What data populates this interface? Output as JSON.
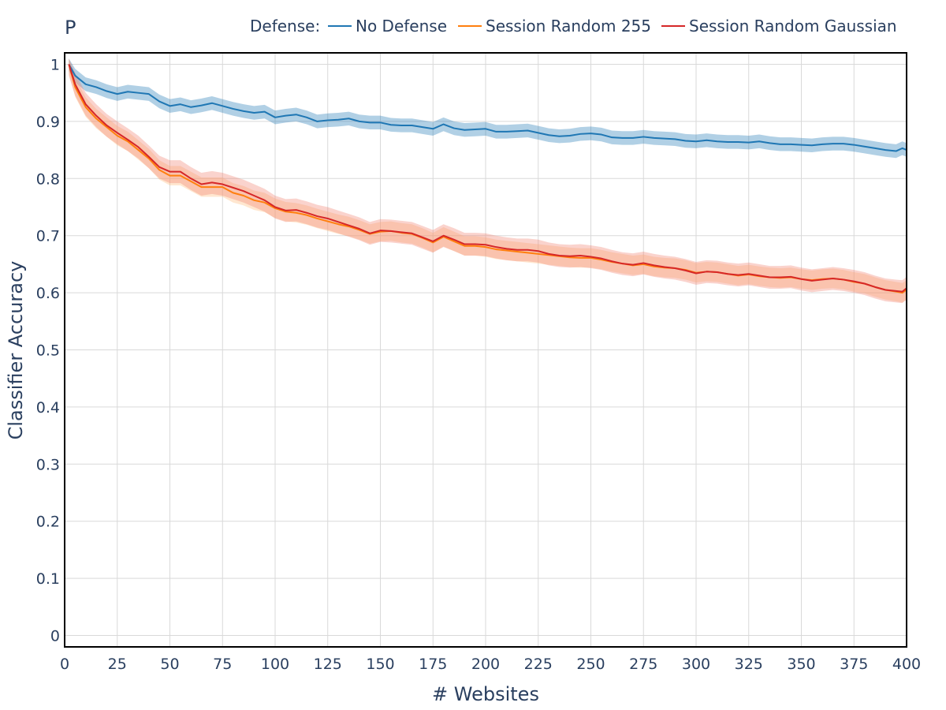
{
  "chart_data": {
    "type": "line",
    "title": "P",
    "xlabel": "# Websites",
    "ylabel": "Classifier Accuracy",
    "xlim": [
      0,
      400
    ],
    "ylim": [
      -0.02,
      1.02
    ],
    "x_ticks": [
      0,
      25,
      50,
      75,
      100,
      125,
      150,
      175,
      200,
      225,
      250,
      275,
      300,
      325,
      350,
      375,
      400
    ],
    "x_tick_labels": [
      "0",
      "25",
      "50",
      "75",
      "100",
      "125",
      "150",
      "175",
      "200",
      "225",
      "250",
      "275",
      "300",
      "325",
      "350",
      "375",
      "400"
    ],
    "y_ticks": [
      0,
      0.1,
      0.2,
      0.3,
      0.4,
      0.5,
      0.6,
      0.7,
      0.8,
      0.9,
      1
    ],
    "y_tick_labels": [
      "0",
      "0.1",
      "0.2",
      "0.3",
      "0.4",
      "0.5",
      "0.6",
      "0.7",
      "0.8",
      "0.9",
      "1"
    ],
    "grid": true,
    "legend": {
      "title": "Defense:",
      "placement": "top"
    },
    "x": [
      2,
      5,
      10,
      15,
      20,
      25,
      30,
      35,
      40,
      45,
      50,
      55,
      60,
      65,
      70,
      75,
      80,
      85,
      90,
      95,
      100,
      105,
      110,
      115,
      120,
      125,
      130,
      135,
      140,
      145,
      150,
      155,
      160,
      165,
      170,
      175,
      180,
      185,
      190,
      195,
      200,
      205,
      210,
      215,
      220,
      225,
      230,
      235,
      240,
      245,
      250,
      255,
      260,
      265,
      270,
      275,
      280,
      285,
      290,
      295,
      300,
      305,
      310,
      315,
      320,
      325,
      330,
      335,
      340,
      345,
      350,
      355,
      360,
      365,
      370,
      375,
      380,
      385,
      390,
      395,
      398,
      400
    ],
    "series": [
      {
        "name": "No Defense",
        "color": "#1f77b4",
        "band_color": "#1f77b4",
        "band_half_width": 0.012,
        "values": [
          1.0,
          0.98,
          0.965,
          0.96,
          0.953,
          0.948,
          0.952,
          0.95,
          0.948,
          0.935,
          0.927,
          0.93,
          0.925,
          0.928,
          0.932,
          0.927,
          0.922,
          0.918,
          0.915,
          0.917,
          0.907,
          0.91,
          0.912,
          0.907,
          0.9,
          0.902,
          0.903,
          0.905,
          0.9,
          0.898,
          0.898,
          0.894,
          0.893,
          0.893,
          0.89,
          0.887,
          0.895,
          0.888,
          0.885,
          0.886,
          0.887,
          0.882,
          0.882,
          0.883,
          0.884,
          0.88,
          0.876,
          0.874,
          0.875,
          0.878,
          0.879,
          0.877,
          0.872,
          0.871,
          0.871,
          0.873,
          0.871,
          0.87,
          0.869,
          0.866,
          0.865,
          0.867,
          0.865,
          0.864,
          0.864,
          0.863,
          0.865,
          0.862,
          0.86,
          0.86,
          0.859,
          0.858,
          0.86,
          0.861,
          0.861,
          0.859,
          0.856,
          0.853,
          0.85,
          0.848,
          0.853,
          0.85
        ]
      },
      {
        "name": "Session Random 255",
        "color": "#ff7f0e",
        "band_color": "#ffbb78",
        "band_half_width": 0.017,
        "values": [
          1.0,
          0.96,
          0.925,
          0.905,
          0.89,
          0.875,
          0.865,
          0.85,
          0.835,
          0.815,
          0.805,
          0.805,
          0.795,
          0.785,
          0.785,
          0.785,
          0.775,
          0.77,
          0.762,
          0.758,
          0.748,
          0.742,
          0.74,
          0.736,
          0.73,
          0.725,
          0.72,
          0.716,
          0.71,
          0.703,
          0.707,
          0.708,
          0.705,
          0.703,
          0.696,
          0.688,
          0.698,
          0.69,
          0.682,
          0.682,
          0.68,
          0.676,
          0.674,
          0.672,
          0.67,
          0.668,
          0.666,
          0.664,
          0.662,
          0.661,
          0.661,
          0.658,
          0.654,
          0.651,
          0.648,
          0.65,
          0.646,
          0.644,
          0.643,
          0.64,
          0.635,
          0.637,
          0.636,
          0.633,
          0.63,
          0.632,
          0.629,
          0.627,
          0.626,
          0.627,
          0.624,
          0.622,
          0.624,
          0.625,
          0.623,
          0.619,
          0.616,
          0.61,
          0.605,
          0.602,
          0.6,
          0.605
        ]
      },
      {
        "name": "Session Random Gaussian",
        "color": "#d62728",
        "band_color": "#f08070",
        "band_half_width": 0.02,
        "values": [
          1.0,
          0.965,
          0.93,
          0.91,
          0.893,
          0.88,
          0.868,
          0.855,
          0.838,
          0.82,
          0.812,
          0.812,
          0.8,
          0.79,
          0.793,
          0.79,
          0.784,
          0.778,
          0.77,
          0.762,
          0.75,
          0.744,
          0.745,
          0.74,
          0.734,
          0.73,
          0.724,
          0.718,
          0.712,
          0.704,
          0.709,
          0.708,
          0.706,
          0.704,
          0.697,
          0.69,
          0.7,
          0.693,
          0.685,
          0.685,
          0.684,
          0.68,
          0.677,
          0.675,
          0.675,
          0.673,
          0.668,
          0.665,
          0.664,
          0.665,
          0.663,
          0.66,
          0.655,
          0.651,
          0.649,
          0.652,
          0.648,
          0.645,
          0.643,
          0.639,
          0.634,
          0.637,
          0.636,
          0.633,
          0.631,
          0.633,
          0.63,
          0.627,
          0.627,
          0.628,
          0.624,
          0.621,
          0.623,
          0.625,
          0.623,
          0.62,
          0.616,
          0.61,
          0.605,
          0.603,
          0.602,
          0.608
        ]
      }
    ]
  }
}
